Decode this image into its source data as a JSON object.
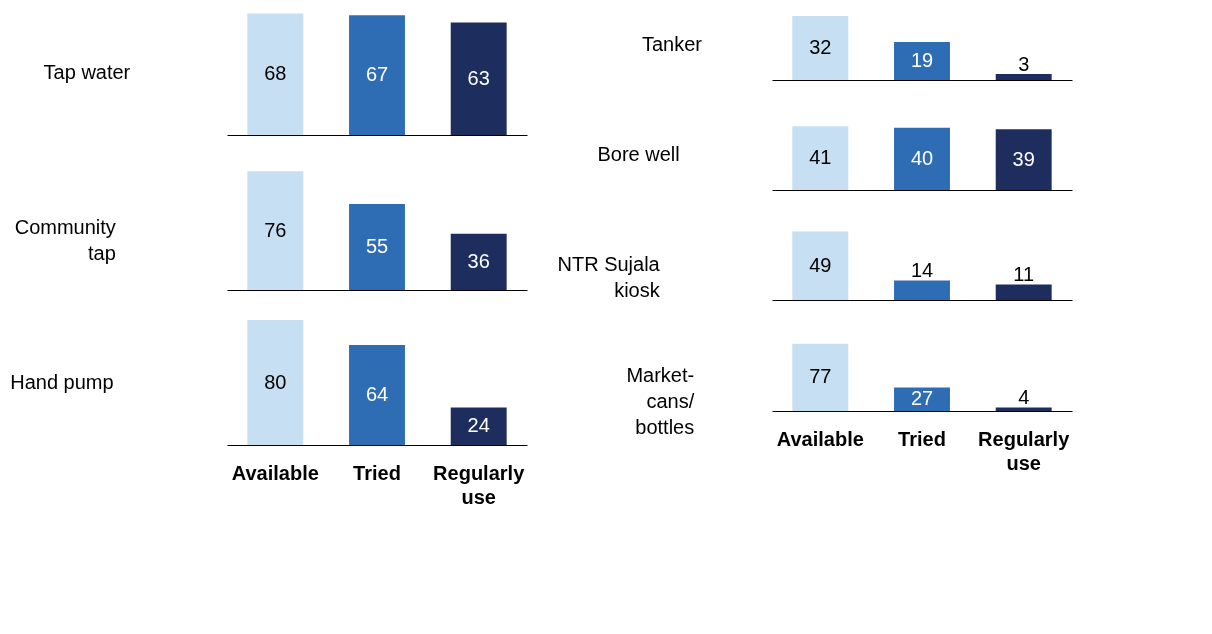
{
  "chart_data": [
    {
      "type": "bar",
      "title": "Tap water",
      "categories": [
        null,
        null,
        null
      ],
      "values": [
        68,
        67,
        63
      ],
      "colors": [
        "#c6dff2",
        "#2e6db4",
        "#1c2d5e"
      ],
      "data_labels": true,
      "tick_labels": false
    },
    {
      "type": "bar",
      "title": "Community tap",
      "categories": [
        null,
        null,
        null
      ],
      "values": [
        76,
        55,
        36
      ],
      "colors": [
        "#c6dff2",
        "#2e6db4",
        "#1c2d5e"
      ],
      "data_labels": true,
      "tick_labels": false
    },
    {
      "type": "bar",
      "title": "Hand pump",
      "categories": [
        "Available",
        "Tried",
        "Regularly use"
      ],
      "values": [
        80,
        64,
        24
      ],
      "colors": [
        "#c6dff2",
        "#2e6db4",
        "#1c2d5e"
      ],
      "data_labels": true,
      "tick_labels": "x"
    },
    {
      "type": "bar",
      "title": "Tanker",
      "categories": [
        null,
        null,
        null
      ],
      "values": [
        32,
        19,
        3
      ],
      "colors": [
        "#c6dff2",
        "#2e6db4",
        "#1c2d5e"
      ],
      "data_labels": true,
      "tick_labels": false
    },
    {
      "type": "bar",
      "title": "Bore well",
      "categories": [
        null,
        null,
        null
      ],
      "values": [
        41,
        40,
        39
      ],
      "colors": [
        "#c6dff2",
        "#2e6db4",
        "#1c2d5e"
      ],
      "data_labels": true,
      "tick_labels": false
    },
    {
      "type": "bar",
      "title": "NTR Sujala kiosk",
      "categories": [
        null,
        null,
        null
      ],
      "values": [
        49,
        14,
        11
      ],
      "colors": [
        "#c6dff2",
        "#2e6db4",
        "#1c2d5e"
      ],
      "data_labels": true,
      "tick_labels": false
    },
    {
      "type": "bar",
      "title": "Market-cans/bottles",
      "categories": [
        "Available",
        "Tried",
        "Regularly use"
      ],
      "values": [
        77,
        27,
        4
      ],
      "colors": [
        "#c6dff2",
        "#2e6db4",
        "#1c2d5e"
      ],
      "data_labels": true,
      "tick_labels": "x"
    }
  ]
}
